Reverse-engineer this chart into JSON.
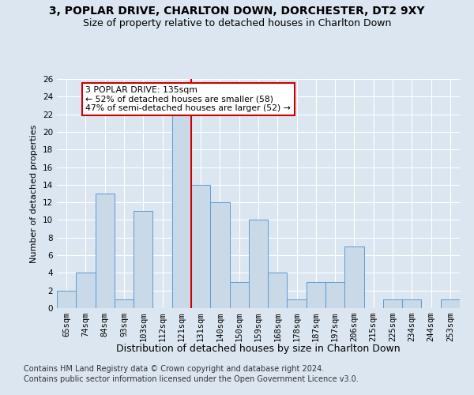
{
  "title": "3, POPLAR DRIVE, CHARLTON DOWN, DORCHESTER, DT2 9XY",
  "subtitle": "Size of property relative to detached houses in Charlton Down",
  "xlabel": "Distribution of detached houses by size in Charlton Down",
  "ylabel": "Number of detached properties",
  "categories": [
    "65sqm",
    "74sqm",
    "84sqm",
    "93sqm",
    "103sqm",
    "112sqm",
    "121sqm",
    "131sqm",
    "140sqm",
    "150sqm",
    "159sqm",
    "168sqm",
    "178sqm",
    "187sqm",
    "197sqm",
    "206sqm",
    "215sqm",
    "225sqm",
    "234sqm",
    "244sqm",
    "253sqm"
  ],
  "values": [
    2,
    4,
    13,
    1,
    11,
    0,
    22,
    14,
    12,
    3,
    10,
    4,
    1,
    3,
    3,
    7,
    0,
    1,
    1,
    0,
    1
  ],
  "bar_color": "#c9d9e8",
  "bar_edge_color": "#5b9bd5",
  "vline_index": 6.5,
  "ylim": [
    0,
    26
  ],
  "yticks": [
    0,
    2,
    4,
    6,
    8,
    10,
    12,
    14,
    16,
    18,
    20,
    22,
    24,
    26
  ],
  "annotation_text": "3 POPLAR DRIVE: 135sqm\n← 52% of detached houses are smaller (58)\n47% of semi-detached houses are larger (52) →",
  "annotation_box_color": "#ffffff",
  "annotation_box_edge": "#cc0000",
  "vline_color": "#cc0000",
  "footer1": "Contains HM Land Registry data © Crown copyright and database right 2024.",
  "footer2": "Contains public sector information licensed under the Open Government Licence v3.0.",
  "background_color": "#dce6f0",
  "grid_color": "#ffffff",
  "title_fontsize": 10,
  "subtitle_fontsize": 9,
  "tick_fontsize": 7.5,
  "xlabel_fontsize": 9,
  "ylabel_fontsize": 8,
  "footer_fontsize": 7
}
